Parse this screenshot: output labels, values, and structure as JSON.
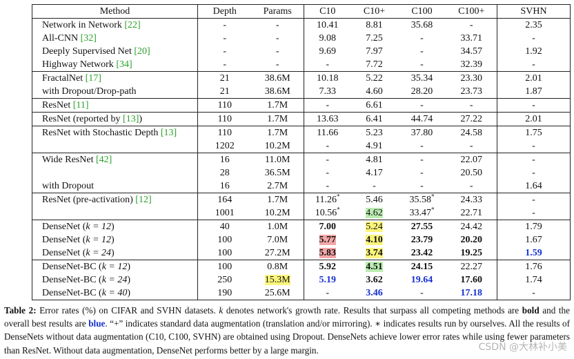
{
  "table": {
    "headers": [
      "Method",
      "Depth",
      "Params",
      "C10",
      "C10+",
      "C100",
      "C100+",
      "SVHN"
    ],
    "groups": [
      {
        "rows": [
          {
            "method": "Network in Network ",
            "ref": "[22]",
            "depth": "-",
            "params": "-",
            "c10": "10.41",
            "c10p": "8.81",
            "c100": "35.68",
            "c100p": "-",
            "svhn": "2.35"
          },
          {
            "method": "All-CNN ",
            "ref": "[32]",
            "depth": "-",
            "params": "-",
            "c10": "9.08",
            "c10p": "7.25",
            "c100": "-",
            "c100p": "33.71",
            "svhn": "-"
          },
          {
            "method": "Deeply Supervised Net ",
            "ref": "[20]",
            "depth": "-",
            "params": "-",
            "c10": "9.69",
            "c10p": "7.97",
            "c100": "-",
            "c100p": "34.57",
            "svhn": "1.92"
          },
          {
            "method": "Highway Network ",
            "ref": "[34]",
            "depth": "-",
            "params": "-",
            "c10": "-",
            "c10p": "7.72",
            "c100": "-",
            "c100p": "32.39",
            "svhn": "-"
          }
        ]
      },
      {
        "rows": [
          {
            "method": "FractalNet ",
            "ref": "[17]",
            "depth": "21",
            "params": "38.6M",
            "c10": "10.18",
            "c10p": "5.22",
            "c100": "35.34",
            "c100p": "23.30",
            "svhn": "2.01"
          },
          {
            "method": "with Dropout/Drop-path",
            "ref": "",
            "depth": "21",
            "params": "38.6M",
            "c10": "7.33",
            "c10p": "4.60",
            "c100": "28.20",
            "c100p": "23.73",
            "svhn": "1.87"
          }
        ]
      },
      {
        "rows": [
          {
            "method": "ResNet ",
            "ref": "[11]",
            "depth": "110",
            "params": "1.7M",
            "c10": "-",
            "c10p": "6.61",
            "c100": "-",
            "c100p": "-",
            "svhn": "-"
          }
        ]
      },
      {
        "rows": [
          {
            "method": "ResNet (reported by ",
            "ref": "[13]",
            "suffix": ")",
            "depth": "110",
            "params": "1.7M",
            "c10": "13.63",
            "c10p": "6.41",
            "c100": "44.74",
            "c100p": "27.22",
            "svhn": "2.01"
          }
        ]
      },
      {
        "rows": [
          {
            "method": "ResNet with Stochastic Depth ",
            "ref": "[13]",
            "depth": "110",
            "params": "1.7M",
            "c10": "11.66",
            "c10p": "5.23",
            "c100": "37.80",
            "c100p": "24.58",
            "svhn": "1.75"
          },
          {
            "method": "",
            "ref": "",
            "depth": "1202",
            "params": "10.2M",
            "c10": "-",
            "c10p": "4.91",
            "c100": "-",
            "c100p": "-",
            "svhn": "-"
          }
        ]
      },
      {
        "rows": [
          {
            "method": "Wide ResNet ",
            "ref": "[42]",
            "depth": "16",
            "params": "11.0M",
            "c10": "-",
            "c10p": "4.81",
            "c100": "-",
            "c100p": "22.07",
            "svhn": "-"
          },
          {
            "method": "",
            "ref": "",
            "depth": "28",
            "params": "36.5M",
            "c10": "-",
            "c10p": "4.17",
            "c100": "-",
            "c100p": "20.50",
            "svhn": "-"
          },
          {
            "method": "with Dropout",
            "ref": "",
            "depth": "16",
            "params": "2.7M",
            "c10": "-",
            "c10p": "-",
            "c100": "-",
            "c100p": "-",
            "svhn": "1.64"
          }
        ]
      },
      {
        "rows": [
          {
            "method": "ResNet (pre-activation) ",
            "ref": "[12]",
            "depth": "164",
            "params": "1.7M",
            "c10": "11.26",
            "c10_sup": "*",
            "c10p": "5.46",
            "c100": "35.58",
            "c100_sup": "*",
            "c100p": "24.33",
            "svhn": "-"
          },
          {
            "method": "",
            "ref": "",
            "depth": "1001",
            "params": "10.2M",
            "c10": "10.56",
            "c10_sup": "*",
            "c10p": "4.62",
            "c10p_hl": "green",
            "c100": "33.47",
            "c100_sup": "*",
            "c100p": "22.71",
            "svhn": "-"
          }
        ]
      },
      {
        "rows": [
          {
            "method": "DenseNet (",
            "k": "k = 12",
            "suffix": ")",
            "depth": "40",
            "params": "1.0M",
            "c10": "7.00",
            "c10_style": "bold",
            "c10p": "5.24",
            "c10p_hl": "yellow",
            "c100": "27.55",
            "c100_style": "bold",
            "c100p": "24.42",
            "svhn": "1.79"
          },
          {
            "method": "DenseNet (",
            "k": "k = 12",
            "suffix": ")",
            "depth": "100",
            "params": "7.0M",
            "c10": "5.77",
            "c10_style": "bold",
            "c10_hl": "red",
            "c10p": "4.10",
            "c10p_style": "bold",
            "c10p_hl": "yellow",
            "c100": "23.79",
            "c100_style": "bold",
            "c100p": "20.20",
            "c100p_style": "bold",
            "svhn": "1.67"
          },
          {
            "method": "DenseNet (",
            "k": "k = 24",
            "suffix": ")",
            "depth": "100",
            "params": "27.2M",
            "c10": "5.83",
            "c10_style": "bold",
            "c10_hl": "red",
            "c10p": "3.74",
            "c10p_style": "bold",
            "c10p_hl": "yellow",
            "c100": "23.42",
            "c100_style": "bold",
            "c100p": "19.25",
            "c100p_style": "bold",
            "svhn": "1.59",
            "svhn_style": "blue"
          }
        ]
      },
      {
        "rows": [
          {
            "method": "DenseNet-BC (",
            "k": "k = 12",
            "suffix": ")",
            "depth": "100",
            "params": "0.8M",
            "c10": "5.92",
            "c10_style": "bold",
            "c10p": "4.51",
            "c10p_style": "bold",
            "c10p_hl": "green",
            "c100": "24.15",
            "c100_style": "bold",
            "c100p": "22.27",
            "svhn": "1.76"
          },
          {
            "method": "DenseNet-BC (",
            "k": "k = 24",
            "suffix": ")",
            "depth": "250",
            "params": "15.3M",
            "params_hl": "yellow",
            "c10": "5.19",
            "c10_style": "blue",
            "c10p": "3.62",
            "c10p_style": "bold",
            "c100": "19.64",
            "c100_style": "blue",
            "c100p": "17.60",
            "c100p_style": "bold",
            "svhn": "1.74"
          },
          {
            "method": "DenseNet-BC (",
            "k": "k = 40",
            "suffix": ")",
            "depth": "190",
            "params": "25.6M",
            "c10": "-",
            "c10p": "3.46",
            "c10p_style": "blue",
            "c100": "-",
            "c100p": "17.18",
            "c100p_style": "blue",
            "svhn": "-"
          }
        ]
      }
    ]
  },
  "caption": {
    "label": "Table 2:",
    "parts": [
      {
        "t": " Error rates (%) on CIFAR and SVHN datasets. "
      },
      {
        "t": "k",
        "i": true
      },
      {
        "t": " denotes network's growth rate. Results that surpass all competing methods are "
      },
      {
        "t": "bold",
        "b": true
      },
      {
        "t": " and the overall best results are "
      },
      {
        "t": "blue",
        "blue": true
      },
      {
        "t": ". “+” indicates standard data augmentation (translation and/or mirroring). ∗ indicates results run by ourselves. All the results of DenseNets without data augmentation (C10, C100, SVHN) are obtained using Dropout. DenseNets achieve lower error rates while using fewer parameters than ResNet. Without data augmentation, DenseNet performs better by a large margin."
      }
    ]
  },
  "watermark": "CSDN @大林补小美"
}
